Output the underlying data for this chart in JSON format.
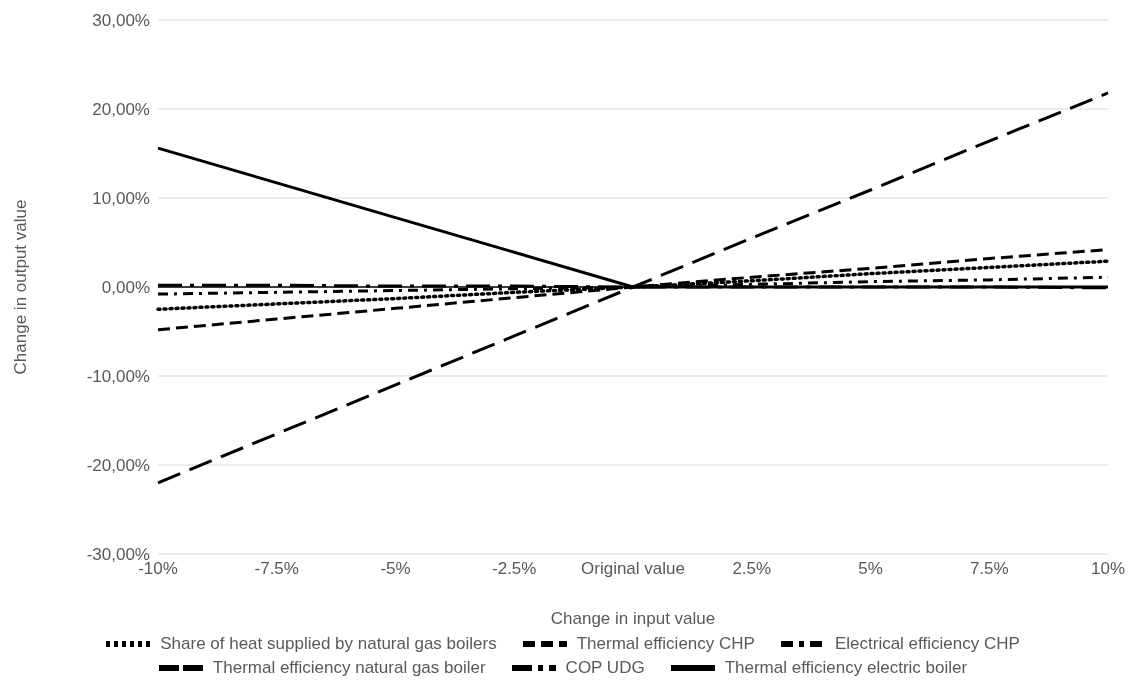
{
  "chart_data": {
    "type": "line",
    "xlabel": "Change in input value",
    "ylabel": "Change in output value",
    "categories": [
      "-10%",
      "-7.5%",
      "-5%",
      "-2.5%",
      "Original value",
      "2.5%",
      "5%",
      "7.5%",
      "10%"
    ],
    "series": [
      {
        "name": "Share of heat supplied by natural gas boilers",
        "color": "#000000",
        "line_style": "dotted",
        "values": [
          -2.5,
          -1.9,
          -1.3,
          -0.6,
          0,
          0.7,
          1.5,
          2.2,
          2.9
        ]
      },
      {
        "name": "Thermal efficiency CHP",
        "color": "#000000",
        "line_style": "dashed",
        "values": [
          -4.8,
          -3.6,
          -2.4,
          -1.2,
          0,
          1.1,
          2.1,
          3.2,
          4.2
        ]
      },
      {
        "name": "Electrical efficiency CHP",
        "color": "#000000",
        "line_style": "dashdot",
        "values": [
          -0.8,
          -0.6,
          -0.4,
          -0.2,
          0,
          0.3,
          0.6,
          0.8,
          1.1
        ]
      },
      {
        "name": "Thermal efficiency natural gas boiler",
        "color": "#000000",
        "line_style": "longdash",
        "values": [
          -22,
          -16.5,
          -11,
          -5.5,
          0,
          5.5,
          10.9,
          16.4,
          21.8
        ]
      },
      {
        "name": "COP UDG",
        "color": "#000000",
        "line_style": "longdashdot",
        "values": [
          0.2,
          0.2,
          0.1,
          0.1,
          0,
          0,
          0,
          0,
          -0.1
        ]
      },
      {
        "name": "Thermal efficiency electric boiler",
        "color": "#000000",
        "line_style": "solid",
        "values": [
          15.6,
          11.7,
          7.8,
          3.9,
          0,
          0,
          0,
          0,
          0
        ]
      }
    ],
    "ylim": [
      -30,
      30
    ],
    "yticks": [
      {
        "value": -30,
        "label": "-30,00%"
      },
      {
        "value": -20,
        "label": "-20,00%"
      },
      {
        "value": -10,
        "label": "-10,00%"
      },
      {
        "value": 0,
        "label": "0,00%"
      },
      {
        "value": 10,
        "label": "10,00%"
      },
      {
        "value": 20,
        "label": "20,00%"
      },
      {
        "value": 30,
        "label": "30,00%"
      }
    ],
    "ref_lines": [
      {
        "axis": "y",
        "value": 0,
        "color": "#000000"
      }
    ],
    "grid": "y",
    "legend": "bottom",
    "marker": "none"
  }
}
